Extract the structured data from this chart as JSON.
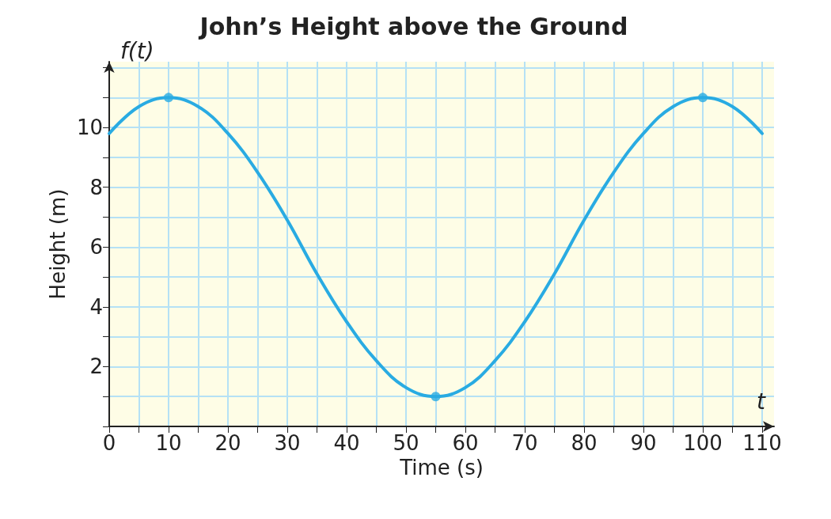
{
  "chart_data": {
    "type": "line",
    "title": "John’s Height above the Ground",
    "xlabel": "Time (s)",
    "ylabel": "Height (m)",
    "annotations": [
      "f(t)",
      "t"
    ],
    "series": [
      {
        "color": "#29abe2",
        "marker": "none",
        "x": [
          0,
          5,
          10,
          15,
          20,
          25,
          30,
          35,
          40,
          45,
          50,
          55,
          60,
          65,
          70,
          75,
          80,
          85,
          90,
          95,
          100,
          105,
          110
        ],
        "values": [
          9.8,
          10.7,
          11,
          10.7,
          9.8,
          8.5,
          6.9,
          5.1,
          3.5,
          2.2,
          1.3,
          1,
          1.3,
          2.2,
          3.5,
          5.1,
          6.9,
          8.5,
          9.8,
          10.7,
          11,
          10.7,
          9.8
        ]
      },
      {
        "type": "scatter",
        "color": "#29abe2",
        "marker": "circle",
        "x": [
          10,
          55,
          100
        ],
        "values": [
          11,
          1,
          11
        ]
      }
    ],
    "xlim": [
      0,
      112
    ],
    "ylim": [
      0,
      12.2
    ],
    "xticks": [
      0,
      {
        "value": 5,
        "label": null
      },
      10,
      {
        "value": 15,
        "label": null
      },
      20,
      {
        "value": 25,
        "label": null
      },
      30,
      {
        "value": 35,
        "label": null
      },
      40,
      {
        "value": 45,
        "label": null
      },
      50,
      {
        "value": 55,
        "label": null
      },
      60,
      {
        "value": 65,
        "label": null
      },
      70,
      {
        "value": 75,
        "label": null
      },
      80,
      {
        "value": 85,
        "label": null
      },
      90,
      {
        "value": 95,
        "label": null
      },
      100,
      {
        "value": 105,
        "label": null
      },
      110
    ],
    "yticks": [
      {
        "value": 0,
        "label": null
      },
      {
        "value": 1,
        "label": null
      },
      2,
      {
        "value": 3,
        "label": null
      },
      4,
      {
        "value": 5,
        "label": null
      },
      6,
      {
        "value": 7,
        "label": null
      },
      8,
      {
        "value": 9,
        "label": null
      },
      10,
      {
        "value": 11,
        "label": null
      },
      {
        "value": 12,
        "label": null
      }
    ],
    "grid": true
  }
}
